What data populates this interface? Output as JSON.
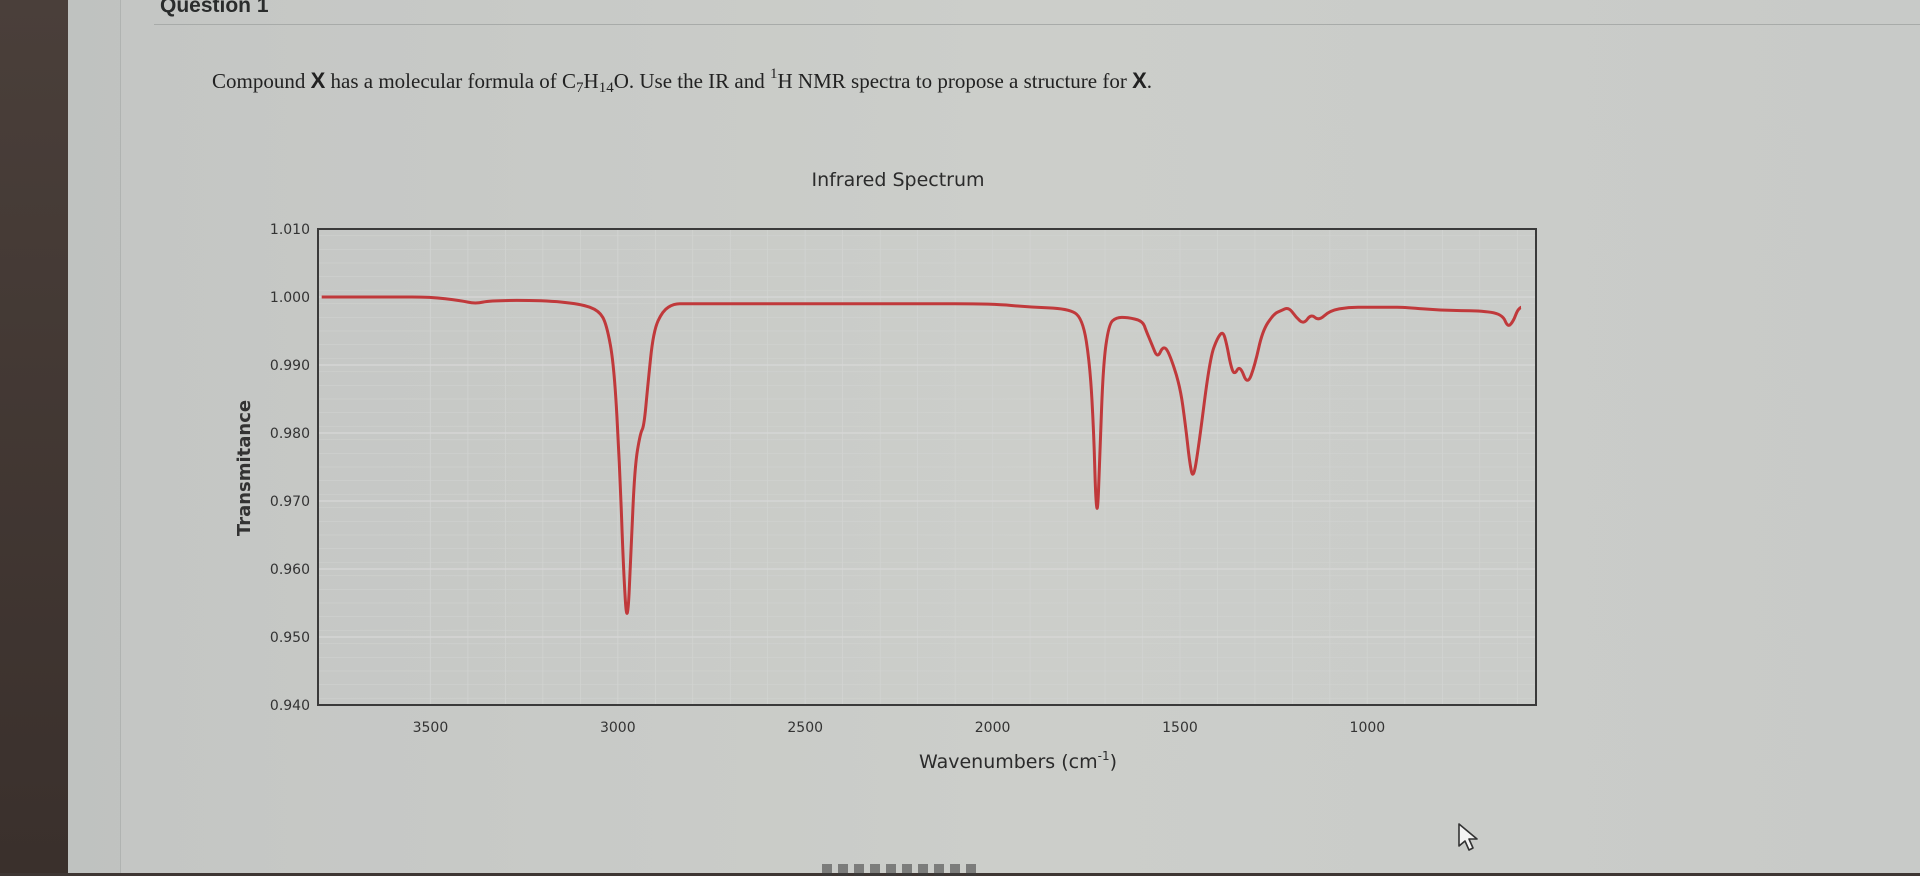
{
  "question": {
    "title": "Question 1",
    "text_part1": "Compound ",
    "text_x1": "X",
    "text_part2": " has a molecular formula of C",
    "sub_c": "7",
    "text_h": "H",
    "sub_h": "14",
    "text_part3": "O. Use the IR and ",
    "sup_nmr": "1",
    "text_part4": "H NMR spectra to propose a structure for ",
    "text_x2": "X",
    "text_end": "."
  },
  "colors": {
    "spectrum_line": "#c0393b",
    "plot_border": "#3a3a3a",
    "grid": "#d8d8d8"
  },
  "chart_data": {
    "type": "line",
    "title": "Infrared Spectrum",
    "xlabel": "Wavenumbers (cm",
    "xlabel_sup": "-1",
    "xlabel_close": ")",
    "ylabel": "Transmitance",
    "xlim": [
      3800,
      550
    ],
    "ylim": [
      0.94,
      1.01
    ],
    "x_reversed": true,
    "grid": true,
    "xticks": [
      3500,
      3000,
      2500,
      2000,
      1500,
      1000
    ],
    "xtick_labels": [
      "3500",
      "3000",
      "2500",
      "2000",
      "1500",
      "1000"
    ],
    "yticks": [
      0.94,
      0.95,
      0.96,
      0.97,
      0.98,
      0.99,
      1.0,
      1.01
    ],
    "ytick_labels": [
      "0.940",
      "0.950",
      "0.960",
      "0.970",
      "0.980",
      "0.990",
      "1.000",
      "1.010"
    ],
    "series": [
      {
        "x": [
          3790,
          3600,
          3500,
          3420,
          3380,
          3340,
          3200,
          3100,
          3050,
          3030,
          3010,
          2995,
          2985,
          2975,
          2965,
          2955,
          2940,
          2930,
          2920,
          2905,
          2880,
          2850,
          2820,
          2750,
          2600,
          2400,
          2200,
          2000,
          1900,
          1800,
          1760,
          1740,
          1730,
          1725,
          1720,
          1715,
          1705,
          1690,
          1670,
          1640,
          1600,
          1590,
          1575,
          1560,
          1545,
          1530,
          1500,
          1485,
          1475,
          1465,
          1450,
          1420,
          1400,
          1385,
          1375,
          1365,
          1355,
          1340,
          1320,
          1300,
          1280,
          1250,
          1230,
          1210,
          1190,
          1170,
          1150,
          1130,
          1100,
          1050,
          1000,
          950,
          900,
          800,
          700,
          640,
          625,
          610,
          600,
          590
        ],
        "y": [
          1.0,
          1.0,
          1.0,
          0.9995,
          0.999,
          0.9995,
          0.9995,
          0.999,
          0.998,
          0.996,
          0.99,
          0.975,
          0.96,
          0.951,
          0.962,
          0.975,
          0.98,
          0.981,
          0.987,
          0.995,
          0.998,
          0.999,
          0.999,
          0.999,
          0.999,
          0.999,
          0.999,
          0.999,
          0.9985,
          0.9983,
          0.997,
          0.99,
          0.98,
          0.9705,
          0.968,
          0.975,
          0.99,
          0.996,
          0.997,
          0.997,
          0.9965,
          0.995,
          0.993,
          0.991,
          0.9928,
          0.992,
          0.987,
          0.981,
          0.976,
          0.973,
          0.978,
          0.991,
          0.994,
          0.995,
          0.993,
          0.99,
          0.9885,
          0.99,
          0.987,
          0.99,
          0.995,
          0.9975,
          0.998,
          0.9985,
          0.997,
          0.996,
          0.9975,
          0.9965,
          0.998,
          0.9985,
          0.9985,
          0.9985,
          0.9985,
          0.998,
          0.998,
          0.9975,
          0.9955,
          0.9965,
          0.998,
          0.9985
        ]
      }
    ]
  }
}
